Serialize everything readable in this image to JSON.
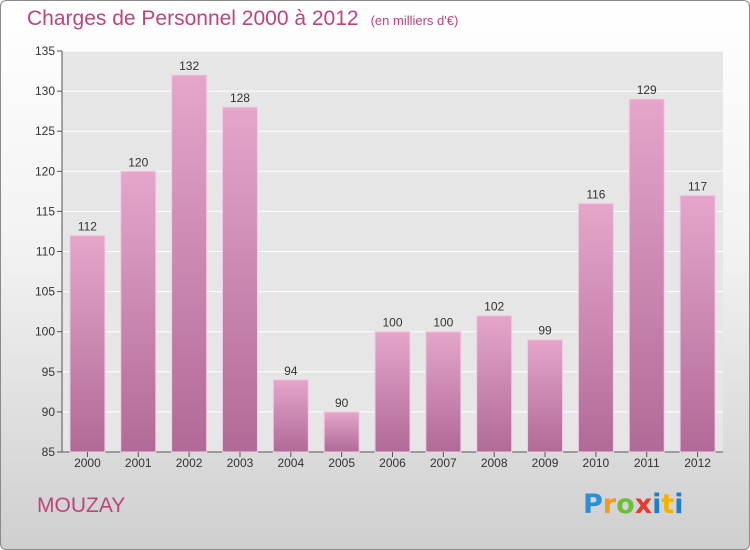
{
  "header": {
    "title": "Charges de Personnel 2000 à 2012",
    "unit": "(en milliers d'€)"
  },
  "footer": {
    "town": "MOUZAY",
    "logo": "Proxiti"
  },
  "colors": {
    "accent": "#c0437e",
    "bar_top": "#e5a6cb",
    "bar_bottom": "#b06a97"
  },
  "chart_data": {
    "type": "bar",
    "title": "Charges de Personnel 2000 à 2012",
    "subtitle": "(en milliers d'€)",
    "categories": [
      "2000",
      "2001",
      "2002",
      "2003",
      "2004",
      "2005",
      "2006",
      "2007",
      "2008",
      "2009",
      "2010",
      "2011",
      "2012"
    ],
    "values": [
      112,
      120,
      132,
      128,
      94,
      90,
      100,
      100,
      102,
      99,
      116,
      129,
      117
    ],
    "ylim": [
      85,
      135
    ],
    "yticks": [
      85,
      90,
      95,
      100,
      105,
      110,
      115,
      120,
      125,
      130,
      135
    ],
    "grid": true,
    "data_labels": true
  }
}
